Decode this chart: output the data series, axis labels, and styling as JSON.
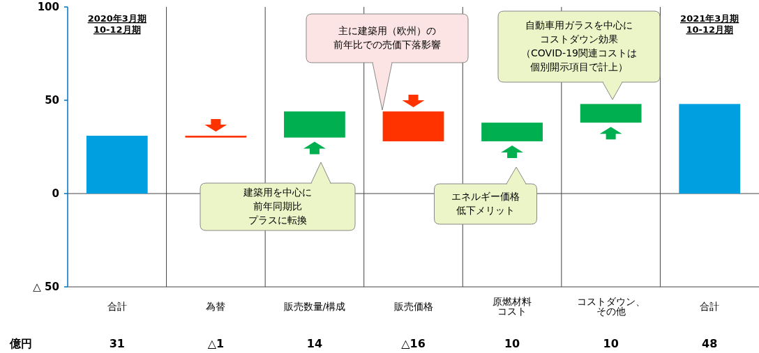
{
  "chart_data": {
    "type": "bar",
    "categories": [
      "合計",
      "為替",
      "販売数量/構成",
      "販売価格",
      "原燃材料コスト",
      "コストダウン、その他",
      "合計"
    ],
    "values": [
      31,
      -1,
      14,
      -16,
      10,
      10,
      48
    ],
    "base": [
      0,
      31,
      30,
      44,
      28,
      38,
      0
    ],
    "colors": [
      "#00a0e0",
      "#ff3300",
      "#00b050",
      "#ff3300",
      "#00b050",
      "#00b050",
      "#00a0e0"
    ],
    "value_labels": [
      "31",
      "△1",
      "14",
      "△16",
      "10",
      "10",
      "48"
    ],
    "ylim": [
      -50,
      100
    ],
    "yticks": [
      100,
      50,
      0,
      {
        "value": -50,
        "label": "△ 50"
      }
    ],
    "grid": "x",
    "ref_lines": [
      {
        "axis": "y",
        "value": 0
      }
    ],
    "annotations": [
      "2020年3月期\n10-12月期",
      "2021年3月期\n10-12月期",
      "主に建築用（欧州）の前年比での売価下落影響",
      "自動車用ガラスを中心にコストダウン効果（COVID-19関連コストは個別開示項目で計上）",
      "建築用を中心に前年同期比プラスに転換",
      "エネルギー価格低下メリット",
      "億円"
    ]
  }
}
